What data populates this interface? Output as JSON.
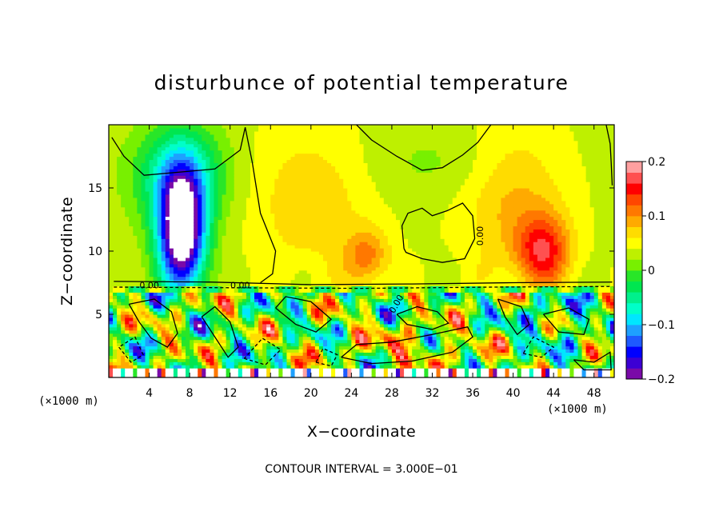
{
  "chart_data": {
    "type": "heatmap",
    "title": "disturbunce of potential temperature",
    "xlabel": "X−coordinate",
    "ylabel": "Z−coordinate",
    "x_unit": "(×1000 m)",
    "y_unit": "(×1000 m)",
    "xlim": [
      0,
      50
    ],
    "ylim": [
      0,
      20
    ],
    "xticks": [
      4,
      8,
      12,
      16,
      20,
      24,
      28,
      32,
      36,
      40,
      44,
      48
    ],
    "yticks": [
      5,
      10,
      15
    ],
    "colorbar": {
      "range": [
        -0.2,
        0.2
      ],
      "ticks": [
        0.2,
        0.1,
        0,
        -0.1,
        -0.2
      ],
      "tick_labels": [
        "0.2",
        "0.1",
        "0",
        "−0.1",
        "−0.2"
      ],
      "colors": [
        "#7a0aa8",
        "#3c00d4",
        "#0000ff",
        "#1e5aff",
        "#1ea0ff",
        "#00e6ff",
        "#00ffc8",
        "#00f08c",
        "#00e650",
        "#28e628",
        "#78f000",
        "#bef000",
        "#ffff00",
        "#ffdc00",
        "#ffaa00",
        "#ff7800",
        "#ff4600",
        "#ff0000",
        "#ff5050",
        "#ffa0a0"
      ]
    },
    "contour_labels": [
      "0.00",
      "0.00",
      "0.00",
      "0.00"
    ],
    "contour_interval_note": "CONTOUR INTERVAL = 3.000E−01",
    "grid": false,
    "legend": "right"
  }
}
